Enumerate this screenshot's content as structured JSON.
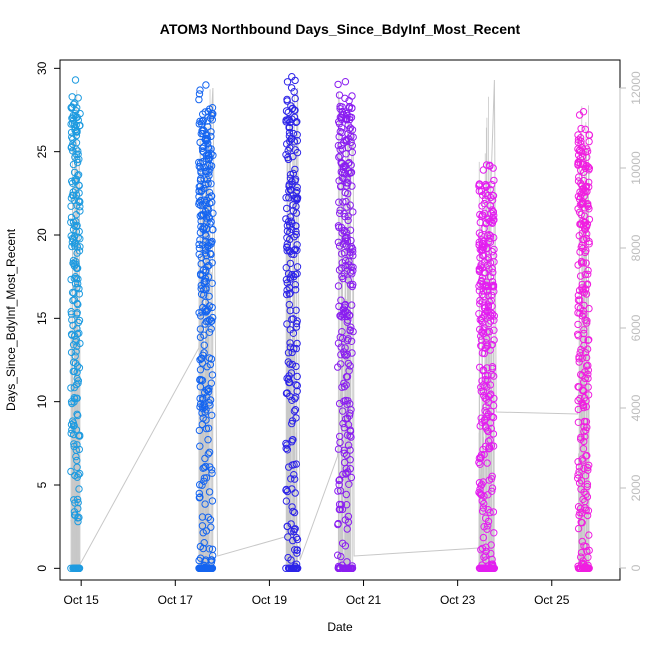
{
  "chart_data": {
    "type": "scatter",
    "title": "ATOM3 Northbound Days_Since_BdyInf_Most_Recent",
    "xlabel": "Date",
    "ylabel": "Days_Since_BdyInf_Most_Recent",
    "xlim": [
      14.55,
      26.45
    ],
    "ylim": [
      -0.7,
      30.5
    ],
    "y2lim": [
      -300,
      12700
    ],
    "x_ticks": [
      {
        "value": 15,
        "label": "Oct 15"
      },
      {
        "value": 17,
        "label": "Oct 17"
      },
      {
        "value": 19,
        "label": "Oct 19"
      },
      {
        "value": 21,
        "label": "Oct 21"
      },
      {
        "value": 23,
        "label": "Oct 23"
      },
      {
        "value": 25,
        "label": "Oct 25"
      }
    ],
    "y_ticks": [
      0,
      5,
      10,
      15,
      20,
      25,
      30
    ],
    "y2_ticks": [
      0,
      2000,
      4000,
      6000,
      8000,
      10000,
      12000
    ],
    "grid": false,
    "legend": "none",
    "series_colors": [
      "#1e9be0",
      "#1565f0",
      "#2d24e8",
      "#8a1ef0",
      "#e31ef0",
      "#f01ee0"
    ],
    "line_color": "#c8c8c8",
    "clusters": [
      {
        "x_start": 14.78,
        "x_end": 14.98,
        "count": 230,
        "ymin": 2.5,
        "ymax": 29.3,
        "color": "#1e9be0"
      },
      {
        "x_start": 17.5,
        "x_end": 17.8,
        "count": 330,
        "ymin": 0,
        "ymax": 29,
        "color": "#1565f0"
      },
      {
        "x_start": 19.35,
        "x_end": 19.6,
        "count": 230,
        "ymin": 0,
        "ymax": 29.5,
        "color": "#2d24e8"
      },
      {
        "x_start": 20.45,
        "x_end": 20.78,
        "count": 300,
        "ymin": 0,
        "ymax": 29.2,
        "color": "#8a1ef0"
      },
      {
        "x_start": 23.45,
        "x_end": 23.78,
        "count": 330,
        "ymin": 0,
        "ymax": 24.2,
        "color": "#e31ef0"
      },
      {
        "x_start": 25.55,
        "x_end": 25.8,
        "count": 280,
        "ymin": 0,
        "ymax": 27.4,
        "color": "#f01ee0"
      }
    ],
    "background_line": [
      [
        14.78,
        1200
      ],
      [
        14.98,
        100
      ],
      [
        17.5,
        5500
      ],
      [
        17.8,
        12000
      ],
      [
        17.9,
        300
      ],
      [
        19.4,
        800
      ],
      [
        19.6,
        12000
      ],
      [
        19.65,
        200
      ],
      [
        20.45,
        2800
      ],
      [
        20.78,
        11000
      ],
      [
        20.8,
        300
      ],
      [
        23.45,
        500
      ],
      [
        23.78,
        12200
      ],
      [
        23.82,
        3900
      ],
      [
        25.55,
        3850
      ],
      [
        25.8,
        10000
      ]
    ]
  }
}
